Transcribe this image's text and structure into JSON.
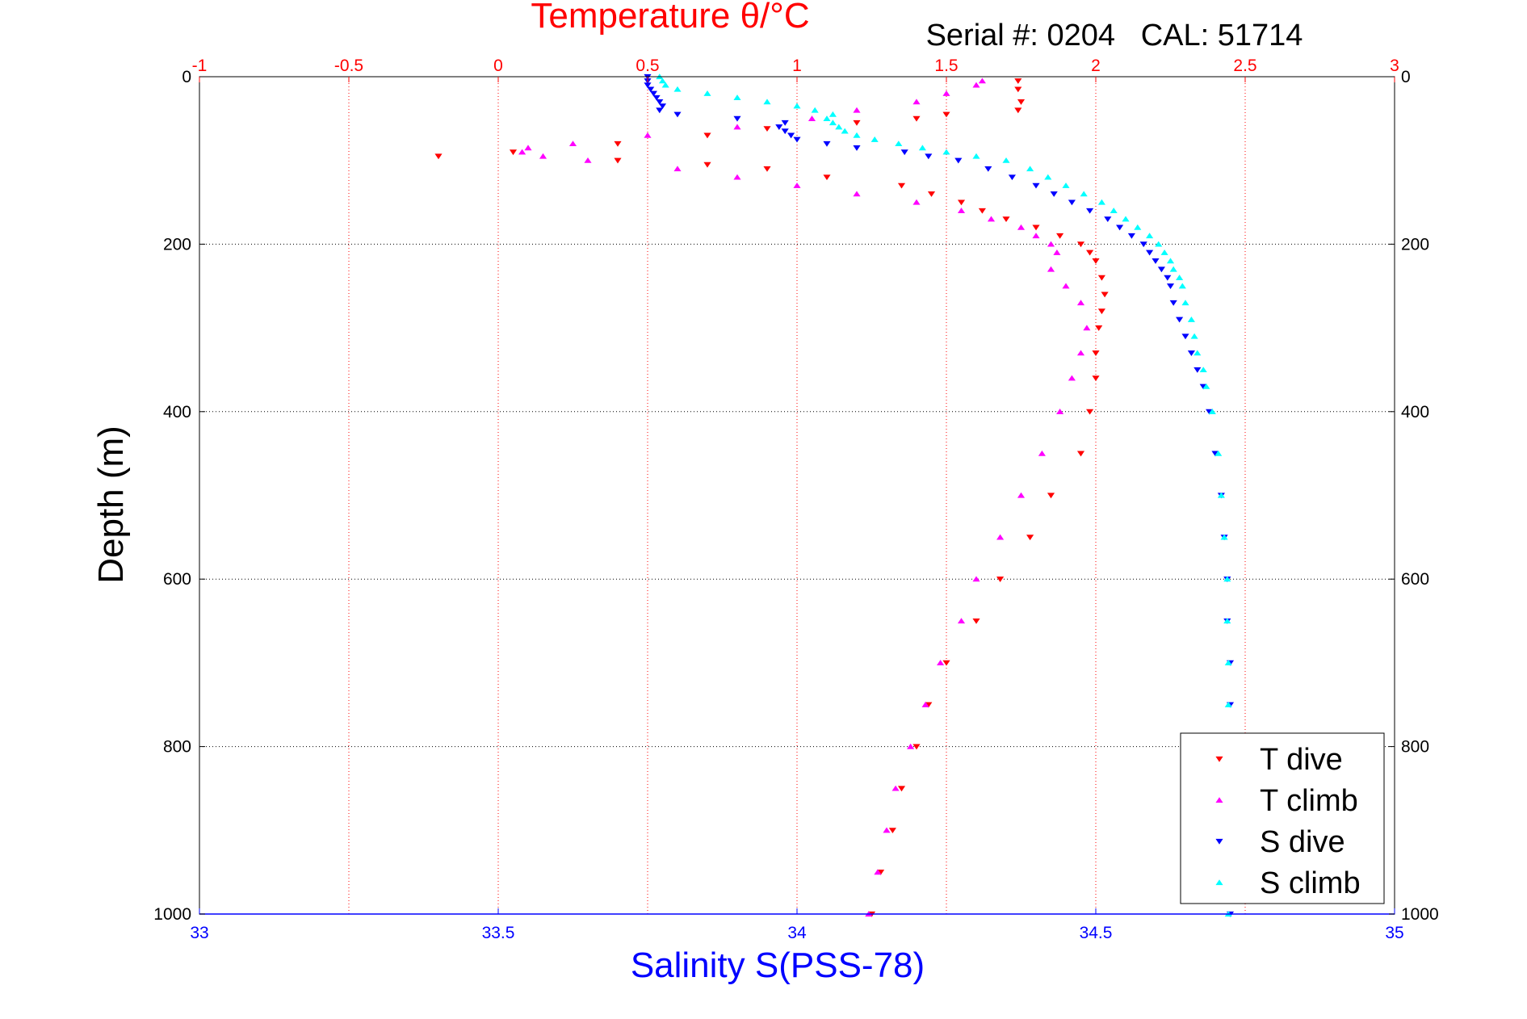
{
  "chart_data": {
    "type": "scatter",
    "title": "Temperature θ/°C",
    "subtitle": "Serial #: 0204   CAL: 51714",
    "xlabel": "Salinity S(PSS-78)",
    "ylabel": "Depth (m)",
    "top_axis": {
      "label": "Temperature θ/°C",
      "range": [
        -1,
        3
      ],
      "ticks": [
        "-1",
        "-0.5",
        "0",
        "0.5",
        "1",
        "1.5",
        "2",
        "2.5",
        "3"
      ],
      "color": "#ff0000"
    },
    "bottom_axis": {
      "label": "Salinity S(PSS-78)",
      "range": [
        33,
        35
      ],
      "ticks": [
        "33",
        "33.5",
        "34",
        "34.5",
        "35"
      ],
      "color": "#0000ff"
    },
    "y_axis": {
      "label": "Depth (m)",
      "range": [
        0,
        1000
      ],
      "reversed": true,
      "ticks": [
        "0",
        "200",
        "400",
        "600",
        "800",
        "1000"
      ],
      "color": "#000000"
    },
    "grid": true,
    "legend_position": "bottom-right",
    "series": [
      {
        "name": "T dive",
        "axis": "temperature",
        "color": "#ff0000",
        "marker": "triangle-down",
        "depth": [
          5,
          15,
          30,
          40,
          45,
          50,
          55,
          62,
          70,
          80,
          90,
          95,
          100,
          105,
          110,
          120,
          130,
          140,
          150,
          160,
          170,
          180,
          190,
          200,
          210,
          220,
          240,
          260,
          280,
          300,
          330,
          360,
          400,
          450,
          500,
          550,
          600,
          650,
          700,
          750,
          800,
          850,
          900,
          950,
          1000
        ],
        "values": [
          1.74,
          1.74,
          1.75,
          1.74,
          1.5,
          1.4,
          1.2,
          0.9,
          0.7,
          0.4,
          0.05,
          -0.2,
          0.4,
          0.7,
          0.9,
          1.1,
          1.35,
          1.45,
          1.55,
          1.62,
          1.7,
          1.8,
          1.88,
          1.95,
          1.98,
          2.0,
          2.02,
          2.03,
          2.02,
          2.01,
          2.0,
          2.0,
          1.98,
          1.95,
          1.85,
          1.78,
          1.68,
          1.6,
          1.5,
          1.44,
          1.4,
          1.35,
          1.32,
          1.28,
          1.25
        ]
      },
      {
        "name": "T climb",
        "axis": "temperature",
        "color": "#ff00ff",
        "marker": "triangle-up",
        "depth": [
          5,
          10,
          20,
          30,
          40,
          50,
          60,
          70,
          80,
          85,
          90,
          95,
          100,
          110,
          120,
          130,
          140,
          150,
          160,
          170,
          180,
          190,
          200,
          210,
          230,
          250,
          270,
          300,
          330,
          360,
          400,
          450,
          500,
          550,
          600,
          650,
          700,
          750,
          800,
          850,
          900,
          950,
          1000
        ],
        "values": [
          1.62,
          1.6,
          1.5,
          1.4,
          1.2,
          1.05,
          0.8,
          0.5,
          0.25,
          0.1,
          0.08,
          0.15,
          0.3,
          0.6,
          0.8,
          1.0,
          1.2,
          1.4,
          1.55,
          1.65,
          1.75,
          1.8,
          1.85,
          1.87,
          1.85,
          1.9,
          1.95,
          1.97,
          1.95,
          1.92,
          1.88,
          1.82,
          1.75,
          1.68,
          1.6,
          1.55,
          1.48,
          1.43,
          1.38,
          1.33,
          1.3,
          1.27,
          1.24
        ]
      },
      {
        "name": "S dive",
        "axis": "salinity",
        "color": "#0000ff",
        "marker": "triangle-down",
        "depth": [
          0,
          5,
          10,
          15,
          20,
          25,
          30,
          35,
          40,
          45,
          50,
          55,
          60,
          65,
          70,
          75,
          80,
          85,
          90,
          95,
          100,
          110,
          120,
          130,
          140,
          150,
          160,
          170,
          180,
          190,
          200,
          210,
          220,
          230,
          240,
          250,
          270,
          290,
          310,
          330,
          350,
          370,
          400,
          450,
          500,
          550,
          600,
          650,
          700,
          750,
          800,
          850,
          900,
          950,
          1000
        ],
        "values": [
          33.75,
          33.75,
          33.75,
          33.755,
          33.76,
          33.765,
          33.77,
          33.775,
          33.77,
          33.8,
          33.9,
          33.98,
          33.97,
          33.98,
          33.99,
          34.0,
          34.05,
          34.1,
          34.18,
          34.22,
          34.27,
          34.32,
          34.36,
          34.4,
          34.43,
          34.46,
          34.49,
          34.52,
          34.54,
          34.56,
          34.58,
          34.59,
          34.6,
          34.61,
          34.62,
          34.625,
          34.63,
          34.64,
          34.65,
          34.66,
          34.67,
          34.68,
          34.69,
          34.7,
          34.71,
          34.715,
          34.72,
          34.72,
          34.725,
          34.725,
          34.725,
          34.725,
          34.725,
          34.725,
          34.725
        ]
      },
      {
        "name": "S climb",
        "axis": "salinity",
        "color": "#00ffff",
        "marker": "triangle-up",
        "depth": [
          0,
          5,
          10,
          15,
          20,
          25,
          30,
          35,
          40,
          45,
          50,
          55,
          60,
          65,
          70,
          75,
          80,
          85,
          90,
          95,
          100,
          110,
          120,
          130,
          140,
          150,
          160,
          170,
          180,
          190,
          200,
          210,
          220,
          230,
          240,
          250,
          270,
          290,
          310,
          330,
          350,
          370,
          400,
          450,
          500,
          550,
          600,
          650,
          700,
          750,
          800,
          850,
          900,
          950,
          1000
        ],
        "values": [
          33.77,
          33.775,
          33.78,
          33.8,
          33.85,
          33.9,
          33.95,
          34.0,
          34.03,
          34.06,
          34.05,
          34.06,
          34.07,
          34.08,
          34.1,
          34.13,
          34.17,
          34.21,
          34.25,
          34.3,
          34.35,
          34.39,
          34.42,
          34.45,
          34.48,
          34.51,
          34.53,
          34.55,
          34.57,
          34.59,
          34.605,
          34.615,
          34.625,
          34.63,
          34.64,
          34.645,
          34.65,
          34.66,
          34.665,
          34.67,
          34.68,
          34.685,
          34.695,
          34.705,
          34.71,
          34.715,
          34.72,
          34.72,
          34.722,
          34.722,
          34.722,
          34.722,
          34.722,
          34.722,
          34.722
        ]
      }
    ]
  }
}
